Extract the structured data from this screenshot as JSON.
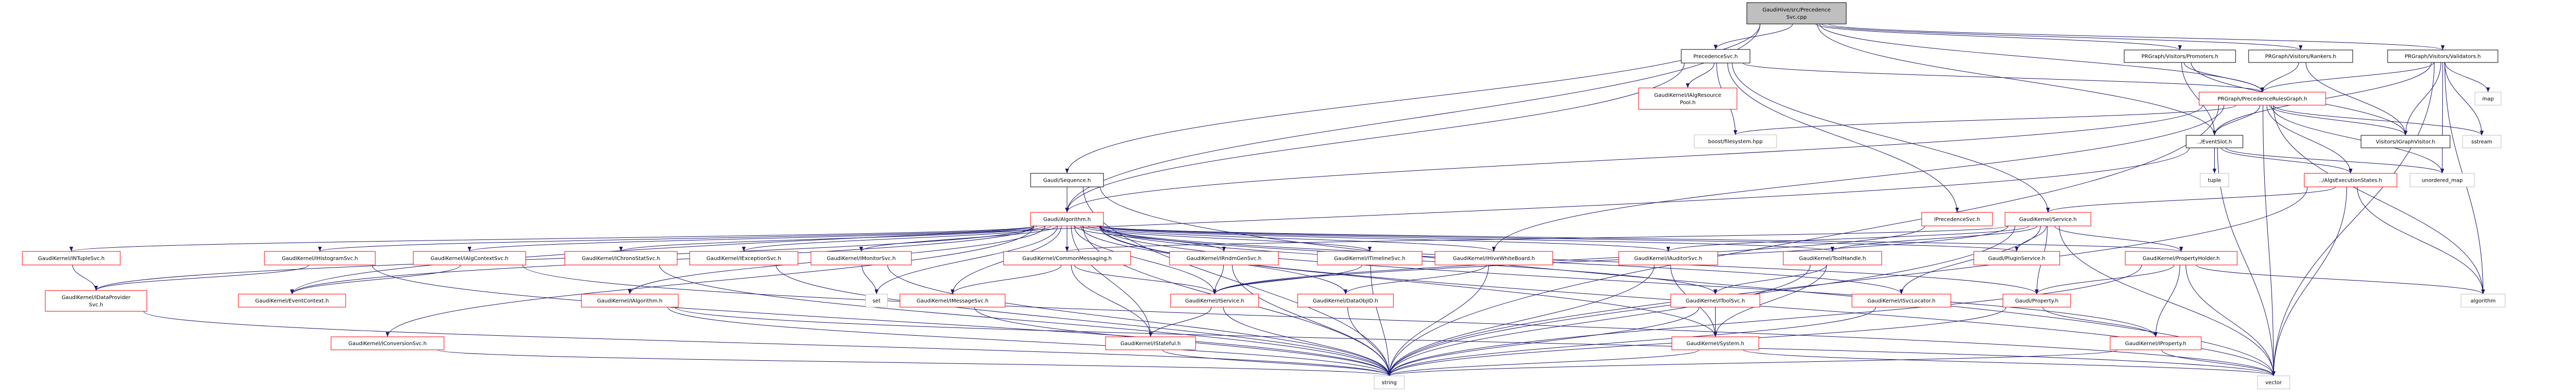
{
  "graph": {
    "title": "GaudiHive/src/PrecedenceSvc.cpp include dependency graph",
    "colors": {
      "edge": "#191970",
      "root_fill": "#bfbfbf",
      "documented_border": "#000000",
      "truncated_border": "#ff0000",
      "external_border": "#bfbfbf"
    },
    "nodes": [
      {
        "id": "root",
        "lines": [
          "GaudiHive/src/Precedence",
          "Svc.cpp"
        ],
        "kind": "root"
      },
      {
        "id": "precsvc",
        "lines": [
          "PrecedenceSvc.h"
        ],
        "kind": "documented"
      },
      {
        "id": "algpool",
        "lines": [
          "GaudiKernel/IAlgResource",
          "Pool.h"
        ],
        "kind": "truncated"
      },
      {
        "id": "boostfs",
        "lines": [
          "boost/filesystem.hpp"
        ],
        "kind": "external"
      },
      {
        "id": "promoters",
        "lines": [
          "PRGraph/Visitors/Promoters.h"
        ],
        "kind": "documented"
      },
      {
        "id": "rankers",
        "lines": [
          "PRGraph/Visitors/Rankers.h"
        ],
        "kind": "documented"
      },
      {
        "id": "validators",
        "lines": [
          "PRGraph/Visitors/Validators.h"
        ],
        "kind": "documented"
      },
      {
        "id": "prgraph",
        "lines": [
          "PRGraph/PrecedenceRulesGraph.h"
        ],
        "kind": "truncated"
      },
      {
        "id": "map",
        "lines": [
          "map"
        ],
        "kind": "external"
      },
      {
        "id": "eventslot",
        "lines": [
          "../EventSlot.h"
        ],
        "kind": "documented"
      },
      {
        "id": "igraphvisitor",
        "lines": [
          "Visitors/IGraphVisitor.h"
        ],
        "kind": "documented"
      },
      {
        "id": "sstream",
        "lines": [
          "sstream"
        ],
        "kind": "external"
      },
      {
        "id": "sequence",
        "lines": [
          "Gaudi/Sequence.h"
        ],
        "kind": "documented"
      },
      {
        "id": "algorithm_h",
        "lines": [
          "Gaudi/Algorithm.h"
        ],
        "kind": "truncated"
      },
      {
        "id": "tuple",
        "lines": [
          "tuple"
        ],
        "kind": "external"
      },
      {
        "id": "algsexec",
        "lines": [
          "../AlgsExecutionStates.h"
        ],
        "kind": "truncated"
      },
      {
        "id": "unordered_map",
        "lines": [
          "unordered_map"
        ],
        "kind": "external"
      },
      {
        "id": "iprecsvc",
        "lines": [
          "IPrecedenceSvc.h"
        ],
        "kind": "truncated"
      },
      {
        "id": "service",
        "lines": [
          "GaudiKernel/Service.h"
        ],
        "kind": "truncated"
      },
      {
        "id": "intuplesvc",
        "lines": [
          "GaudiKernel/INTupleSvc.h"
        ],
        "kind": "truncated"
      },
      {
        "id": "ihistosvc",
        "lines": [
          "GaudiKernel/IHistogramSvc.h"
        ],
        "kind": "truncated"
      },
      {
        "id": "ialgctx",
        "lines": [
          "GaudiKernel/IAlgContextSvc.h"
        ],
        "kind": "truncated"
      },
      {
        "id": "ichrono",
        "lines": [
          "GaudiKernel/IChronoStatSvc.h"
        ],
        "kind": "truncated"
      },
      {
        "id": "iexception",
        "lines": [
          "GaudiKernel/IExceptionSvc.h"
        ],
        "kind": "truncated"
      },
      {
        "id": "imonitor",
        "lines": [
          "GaudiKernel/IMonitorSvc.h"
        ],
        "kind": "truncated"
      },
      {
        "id": "commonmsg",
        "lines": [
          "GaudiKernel/CommonMessaging.h"
        ],
        "kind": "truncated"
      },
      {
        "id": "irndm",
        "lines": [
          "GaudiKernel/IRndmGenSvc.h"
        ],
        "kind": "truncated"
      },
      {
        "id": "itimeline",
        "lines": [
          "GaudiKernel/ITimelineSvc.h"
        ],
        "kind": "truncated"
      },
      {
        "id": "ihivewb",
        "lines": [
          "GaudiKernel/IHiveWhiteBoard.h"
        ],
        "kind": "truncated"
      },
      {
        "id": "iauditor",
        "lines": [
          "GaudiKernel/IAuditorSvc.h"
        ],
        "kind": "truncated"
      },
      {
        "id": "toolhandle",
        "lines": [
          "GaudiKernel/ToolHandle.h"
        ],
        "kind": "truncated"
      },
      {
        "id": "pluginservice",
        "lines": [
          "Gaudi/PluginService.h"
        ],
        "kind": "truncated"
      },
      {
        "id": "propholder",
        "lines": [
          "GaudiKernel/PropertyHolder.h"
        ],
        "kind": "truncated"
      },
      {
        "id": "idataprov",
        "lines": [
          "GaudiKernel/IDataProvider",
          "Svc.h"
        ],
        "kind": "truncated"
      },
      {
        "id": "eventctx",
        "lines": [
          "GaudiKernel/EventContext.h"
        ],
        "kind": "truncated"
      },
      {
        "id": "ialgorithm",
        "lines": [
          "GaudiKernel/IAlgorithm.h"
        ],
        "kind": "truncated"
      },
      {
        "id": "set",
        "lines": [
          "set"
        ],
        "kind": "external"
      },
      {
        "id": "imessage",
        "lines": [
          "GaudiKernel/IMessageSvc.h"
        ],
        "kind": "truncated"
      },
      {
        "id": "iservice",
        "lines": [
          "GaudiKernel/IService.h"
        ],
        "kind": "truncated"
      },
      {
        "id": "dataobjid",
        "lines": [
          "GaudiKernel/DataObjID.h"
        ],
        "kind": "truncated"
      },
      {
        "id": "itoolsvc",
        "lines": [
          "GaudiKernel/IToolSvc.h"
        ],
        "kind": "truncated"
      },
      {
        "id": "isvclocator",
        "lines": [
          "GaudiKernel/ISvcLocator.h"
        ],
        "kind": "truncated"
      },
      {
        "id": "property",
        "lines": [
          "Gaudi/Property.h"
        ],
        "kind": "truncated"
      },
      {
        "id": "algorithm",
        "lines": [
          "algorithm"
        ],
        "kind": "external"
      },
      {
        "id": "iconversion",
        "lines": [
          "GaudiKernel/IConversionSvc.h"
        ],
        "kind": "truncated"
      },
      {
        "id": "istateful",
        "lines": [
          "GaudiKernel/IStateful.h"
        ],
        "kind": "truncated"
      },
      {
        "id": "system",
        "lines": [
          "GaudiKernel/System.h"
        ],
        "kind": "truncated"
      },
      {
        "id": "iproperty",
        "lines": [
          "GaudiKernel/IProperty.h"
        ],
        "kind": "truncated"
      },
      {
        "id": "string",
        "lines": [
          "string"
        ],
        "kind": "external"
      },
      {
        "id": "vector",
        "lines": [
          "vector"
        ],
        "kind": "external"
      }
    ],
    "edges": [
      [
        "root",
        "precsvc"
      ],
      [
        "root",
        "sequence"
      ],
      [
        "root",
        "algorithm_h"
      ],
      [
        "root",
        "eventslot"
      ],
      [
        "root",
        "promoters"
      ],
      [
        "root",
        "rankers"
      ],
      [
        "root",
        "validators"
      ],
      [
        "root",
        "prgraph"
      ],
      [
        "precsvc",
        "algpool"
      ],
      [
        "precsvc",
        "boostfs"
      ],
      [
        "precsvc",
        "prgraph"
      ],
      [
        "precsvc",
        "service"
      ],
      [
        "precsvc",
        "iprecsvc"
      ],
      [
        "precsvc",
        "algorithm_h"
      ],
      [
        "promoters",
        "prgraph"
      ],
      [
        "promoters",
        "eventslot"
      ],
      [
        "promoters",
        "igraphvisitor"
      ],
      [
        "rankers",
        "prgraph"
      ],
      [
        "rankers",
        "igraphvisitor"
      ],
      [
        "validators",
        "prgraph"
      ],
      [
        "validators",
        "eventslot"
      ],
      [
        "validators",
        "igraphvisitor"
      ],
      [
        "validators",
        "map"
      ],
      [
        "validators",
        "sstream"
      ],
      [
        "validators",
        "unordered_map"
      ],
      [
        "validators",
        "algorithm"
      ],
      [
        "validators",
        "vector"
      ],
      [
        "prgraph",
        "eventslot"
      ],
      [
        "prgraph",
        "igraphvisitor"
      ],
      [
        "prgraph",
        "sstream"
      ],
      [
        "prgraph",
        "algsexec"
      ],
      [
        "prgraph",
        "unordered_map"
      ],
      [
        "prgraph",
        "algorithm"
      ],
      [
        "prgraph",
        "vector"
      ],
      [
        "prgraph",
        "boostfs"
      ],
      [
        "prgraph",
        "algorithm_h"
      ],
      [
        "prgraph",
        "ihivewb"
      ],
      [
        "prgraph",
        "string"
      ],
      [
        "eventslot",
        "tuple"
      ],
      [
        "eventslot",
        "algsexec"
      ],
      [
        "eventslot",
        "unordered_map"
      ],
      [
        "eventslot",
        "vector"
      ],
      [
        "eventslot",
        "eventctx"
      ],
      [
        "algsexec",
        "service"
      ],
      [
        "algsexec",
        "vector"
      ],
      [
        "algsexec",
        "algorithm"
      ],
      [
        "algsexec",
        "string"
      ],
      [
        "sequence",
        "algorithm_h"
      ],
      [
        "sequence",
        "string"
      ],
      [
        "sequence",
        "vector"
      ],
      [
        "algorithm_h",
        "intuplesvc"
      ],
      [
        "algorithm_h",
        "idataprov"
      ],
      [
        "algorithm_h",
        "ihistosvc"
      ],
      [
        "algorithm_h",
        "ialgctx"
      ],
      [
        "algorithm_h",
        "eventctx"
      ],
      [
        "algorithm_h",
        "iconversion"
      ],
      [
        "algorithm_h",
        "ichrono"
      ],
      [
        "algorithm_h",
        "iexception"
      ],
      [
        "algorithm_h",
        "imonitor"
      ],
      [
        "algorithm_h",
        "commonmsg"
      ],
      [
        "algorithm_h",
        "irndm"
      ],
      [
        "algorithm_h",
        "itimeline"
      ],
      [
        "algorithm_h",
        "ihivewb"
      ],
      [
        "algorithm_h",
        "iauditor"
      ],
      [
        "algorithm_h",
        "toolhandle"
      ],
      [
        "algorithm_h",
        "pluginservice"
      ],
      [
        "algorithm_h",
        "propholder"
      ],
      [
        "algorithm_h",
        "ialgorithm"
      ],
      [
        "algorithm_h",
        "set"
      ],
      [
        "algorithm_h",
        "imessage"
      ],
      [
        "algorithm_h",
        "iservice"
      ],
      [
        "algorithm_h",
        "dataobjid"
      ],
      [
        "algorithm_h",
        "istateful"
      ],
      [
        "algorithm_h",
        "isvclocator"
      ],
      [
        "algorithm_h",
        "property"
      ],
      [
        "algorithm_h",
        "system"
      ],
      [
        "algorithm_h",
        "itoolsvc"
      ],
      [
        "algorithm_h",
        "iproperty"
      ],
      [
        "algorithm_h",
        "string"
      ],
      [
        "algorithm_h",
        "vector"
      ],
      [
        "service",
        "pluginservice"
      ],
      [
        "service",
        "propholder"
      ],
      [
        "service",
        "property"
      ],
      [
        "service",
        "isvclocator"
      ],
      [
        "service",
        "toolhandle"
      ],
      [
        "service",
        "iauditor"
      ],
      [
        "service",
        "commonmsg"
      ],
      [
        "service",
        "iservice"
      ],
      [
        "service",
        "vector"
      ],
      [
        "service",
        "string"
      ],
      [
        "iprecsvc",
        "iservice"
      ],
      [
        "intuplesvc",
        "idataprov"
      ],
      [
        "ihistosvc",
        "idataprov"
      ],
      [
        "ihistosvc",
        "string"
      ],
      [
        "ialgctx",
        "eventctx"
      ],
      [
        "ialgctx",
        "vector"
      ],
      [
        "ichrono",
        "string"
      ],
      [
        "iexception",
        "string"
      ],
      [
        "imonitor",
        "set"
      ],
      [
        "imonitor",
        "string"
      ],
      [
        "commonmsg",
        "iservice"
      ],
      [
        "commonmsg",
        "imessage"
      ],
      [
        "commonmsg",
        "istateful"
      ],
      [
        "irndm",
        "iservice"
      ],
      [
        "irndm",
        "string"
      ],
      [
        "itimeline",
        "iservice"
      ],
      [
        "itimeline",
        "string"
      ],
      [
        "ihivewb",
        "dataobjid"
      ],
      [
        "ihivewb",
        "string"
      ],
      [
        "iauditor",
        "system"
      ],
      [
        "iauditor",
        "string"
      ],
      [
        "toolhandle",
        "itoolsvc"
      ],
      [
        "toolhandle",
        "system"
      ],
      [
        "toolhandle",
        "string"
      ],
      [
        "itoolsvc",
        "system"
      ],
      [
        "itoolsvc",
        "string"
      ],
      [
        "propholder",
        "property"
      ],
      [
        "propholder",
        "iproperty"
      ],
      [
        "propholder",
        "string"
      ],
      [
        "propholder",
        "vector"
      ],
      [
        "propholder",
        "algorithm"
      ],
      [
        "property",
        "iproperty"
      ],
      [
        "property",
        "string"
      ],
      [
        "idataprov",
        "string"
      ],
      [
        "ialgorithm",
        "string"
      ],
      [
        "ialgorithm",
        "vector"
      ],
      [
        "imessage",
        "string"
      ],
      [
        "iconversion",
        "string"
      ],
      [
        "iservice",
        "istateful"
      ],
      [
        "iservice",
        "string"
      ],
      [
        "dataobjid",
        "string"
      ],
      [
        "istateful",
        "string"
      ],
      [
        "isvclocator",
        "string"
      ],
      [
        "system",
        "string"
      ],
      [
        "system",
        "vector"
      ],
      [
        "iproperty",
        "string"
      ],
      [
        "iproperty",
        "vector"
      ]
    ]
  }
}
